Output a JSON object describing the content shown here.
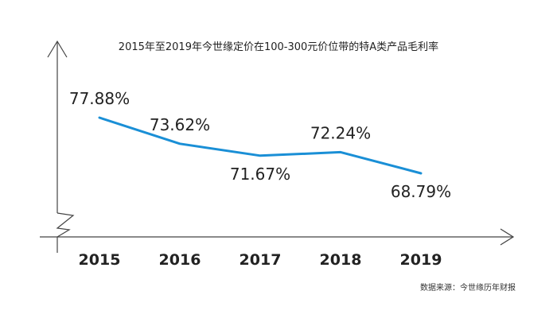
{
  "chart_data": {
    "type": "line",
    "title": "2015年至2019年今世缘定价在100-300元价位带的特A类产品毛利率",
    "categories": [
      "2015",
      "2016",
      "2017",
      "2018",
      "2019"
    ],
    "values": [
      77.88,
      73.62,
      71.67,
      72.24,
      68.79
    ],
    "data_labels": [
      "77.88%",
      "73.62%",
      "71.67%",
      "72.24%",
      "68.79%"
    ],
    "xlabel": "",
    "ylabel": "",
    "ylim": [
      60,
      80
    ],
    "y_axis_broken": true,
    "grid": false,
    "line_color": "#1a8fd6",
    "axis_color": "#444444",
    "source_note": "数据来源：今世缘历年财报"
  }
}
